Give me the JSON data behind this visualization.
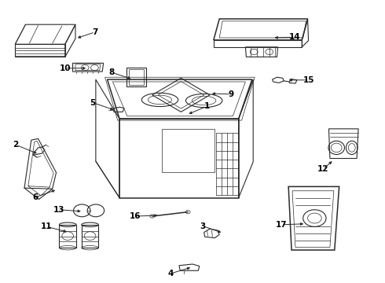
{
  "background_color": "#ffffff",
  "line_color": "#2a2a2a",
  "figsize": [
    4.9,
    3.6
  ],
  "dpi": 100,
  "label_positions": {
    "1": [
      0.485,
      0.595,
      0.51,
      0.625
    ],
    "2": [
      0.1,
      0.455,
      0.068,
      0.488
    ],
    "3": [
      0.58,
      0.175,
      0.555,
      0.2
    ],
    "4": [
      0.5,
      0.055,
      0.472,
      0.032
    ],
    "5": [
      0.3,
      0.61,
      0.268,
      0.638
    ],
    "6": [
      0.148,
      0.33,
      0.118,
      0.302
    ],
    "7": [
      0.195,
      0.865,
      0.218,
      0.888
    ],
    "8": [
      0.345,
      0.72,
      0.318,
      0.745
    ],
    "9": [
      0.545,
      0.67,
      0.572,
      0.668
    ],
    "10": [
      0.228,
      0.76,
      0.196,
      0.76
    ],
    "11": [
      0.178,
      0.178,
      0.148,
      0.198
    ],
    "12": [
      0.868,
      0.435,
      0.868,
      0.402
    ],
    "13": [
      0.215,
      0.252,
      0.18,
      0.258
    ],
    "14": [
      0.708,
      0.868,
      0.738,
      0.87
    ],
    "15": [
      0.745,
      0.718,
      0.775,
      0.718
    ],
    "16": [
      0.415,
      0.238,
      0.378,
      0.235
    ],
    "17": [
      0.795,
      0.208,
      0.76,
      0.205
    ]
  }
}
